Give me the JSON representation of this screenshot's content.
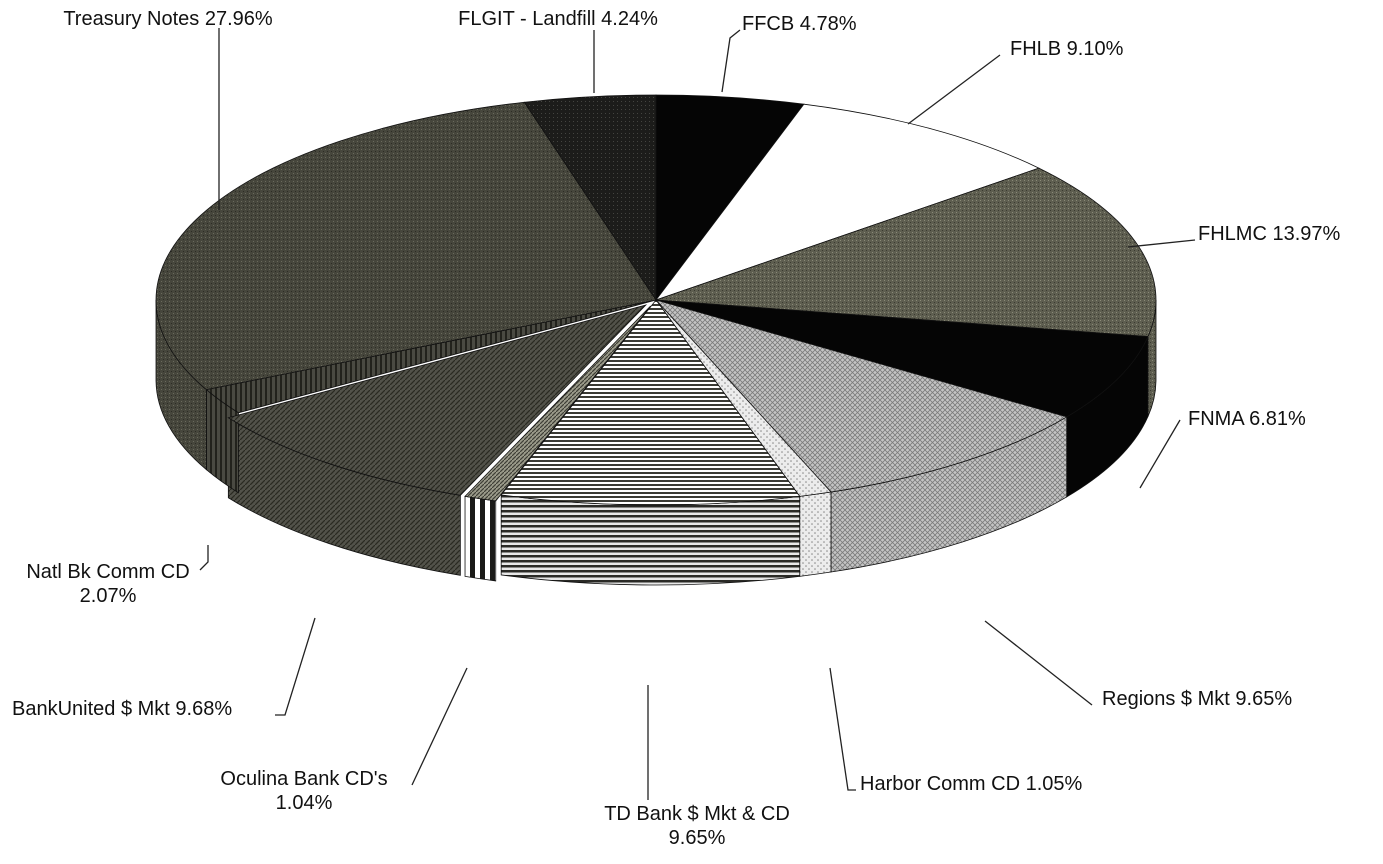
{
  "chart_data": {
    "type": "pie",
    "style": "3d-exploded-perspective",
    "title": "",
    "slices": [
      {
        "label": "FFCB 4.78%",
        "lines": [
          "FFCB 4.78%"
        ],
        "value": 4.78,
        "color": "#050505",
        "pattern": "solid"
      },
      {
        "label": "FHLB 9.10%",
        "lines": [
          "FHLB 9.10%"
        ],
        "value": 9.1,
        "color": "#ffffff",
        "pattern": "solid"
      },
      {
        "label": "FHLMC 13.97%",
        "lines": [
          "FHLMC 13.97%"
        ],
        "value": 13.97,
        "color": "#5e5e50",
        "pattern": "fine-dots"
      },
      {
        "label": "FNMA 6.81%",
        "lines": [
          "FNMA 6.81%"
        ],
        "value": 6.81,
        "color": "#050505",
        "pattern": "solid"
      },
      {
        "label": "Regions $ Mkt 9.65%",
        "lines": [
          "Regions $ Mkt 9.65%"
        ],
        "value": 9.65,
        "color": "#a8a8a8",
        "pattern": "crosshatch"
      },
      {
        "label": "Harbor Comm CD 1.05%",
        "lines": [
          "Harbor Comm CD 1.05%"
        ],
        "value": 1.05,
        "color": "#e4e4e4",
        "pattern": "sparse-dots"
      },
      {
        "label": "TD Bank $ Mkt & CD 9.65%",
        "lines": [
          "TD Bank $ Mkt & CD",
          "9.65%"
        ],
        "value": 9.65,
        "color": "#d8d8d8",
        "pattern": "horizontal-stripes"
      },
      {
        "label": "Oculina Bank CD's 1.04%",
        "lines": [
          "Oculina Bank CD's",
          "1.04%"
        ],
        "value": 1.04,
        "color": "#8a8a7c",
        "pattern": "diagonal-dense"
      },
      {
        "label": "BankUnited $ Mkt 9.68%",
        "lines": [
          "BankUnited $ Mkt 9.68%"
        ],
        "value": 9.68,
        "color": "#4a4a40",
        "pattern": "diagonal"
      },
      {
        "label": "Natl Bk Comm CD 2.07%",
        "lines": [
          "Natl Bk Comm CD",
          "2.07%"
        ],
        "value": 2.07,
        "color": "#3a3a30",
        "pattern": "vertical"
      },
      {
        "label": "Treasury Notes 27.96%",
        "lines": [
          "Treasury Notes 27.96%"
        ],
        "value": 27.96,
        "color": "#46463c",
        "pattern": "fine-dots"
      },
      {
        "label": "FLGIT - Landfill 4.24%",
        "lines": [
          "FLGIT - Landfill 4.24%"
        ],
        "value": 4.24,
        "color": "#222220",
        "pattern": "fine-dots"
      }
    ]
  }
}
